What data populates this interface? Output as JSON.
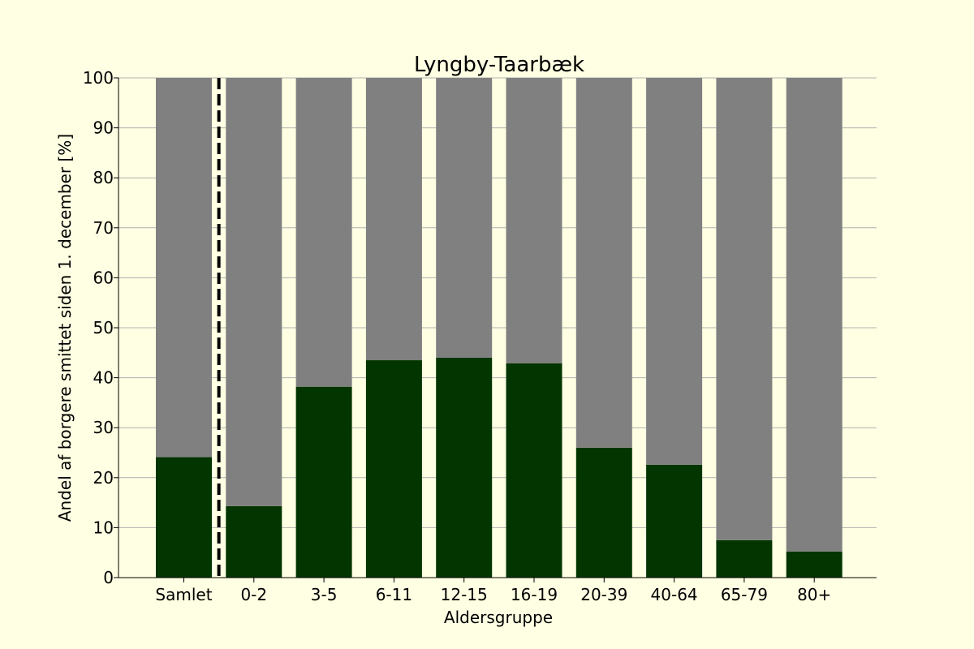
{
  "colors": {
    "background": "#ffffe3",
    "infected": "#033500",
    "remainder": "#808080",
    "grid": "#b0b0b0",
    "axis": "#000000"
  },
  "chart_data": {
    "type": "bar",
    "stacked": true,
    "title": "Lyngby-Taarbæk",
    "xlabel": "Aldersgruppe",
    "ylabel": "Andel af borgere smittet siden 1. december [%]",
    "categories": [
      "Samlet",
      "0-2",
      "3-5",
      "6-11",
      "12-15",
      "16-19",
      "20-39",
      "40-64",
      "65-79",
      "80+"
    ],
    "series": [
      {
        "color": "#033500",
        "values": [
          24.1,
          14.3,
          38.2,
          43.5,
          44.0,
          42.9,
          26.0,
          22.6,
          7.5,
          5.2
        ]
      },
      {
        "color": "#808080",
        "values": [
          75.9,
          85.7,
          61.8,
          56.5,
          56.0,
          57.1,
          74.0,
          77.4,
          92.5,
          94.8
        ]
      }
    ],
    "ylim": [
      0,
      100
    ],
    "yticks": [
      0,
      10,
      20,
      30,
      40,
      50,
      60,
      70,
      80,
      90,
      100
    ],
    "grid": "horizontal",
    "separator": {
      "after_category": "Samlet",
      "style": "dashed"
    }
  }
}
